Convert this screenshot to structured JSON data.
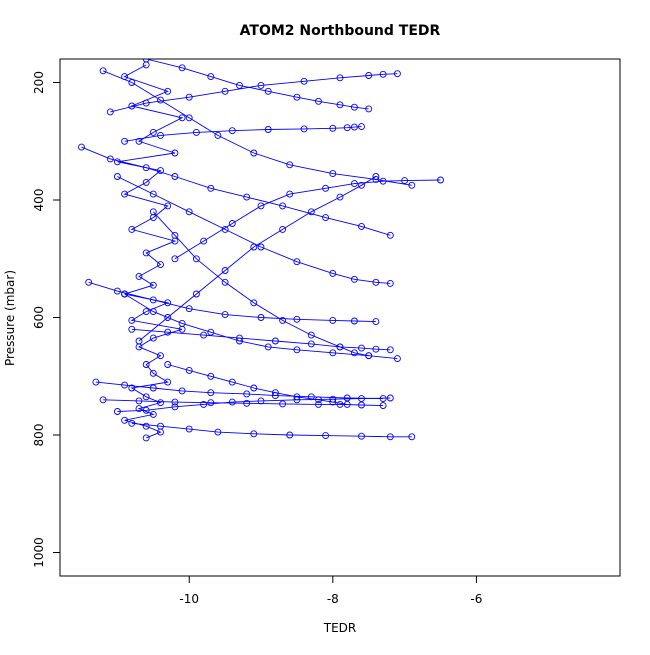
{
  "chart_data": {
    "type": "line",
    "title": "ATOM2 Northbound TEDR",
    "xlabel": "TEDR",
    "ylabel": "Pressure (mbar)",
    "xlim": [
      -11.8,
      -4.0
    ],
    "ylim": [
      1040,
      160
    ],
    "y_inverted": true,
    "x_ticks": [
      -10,
      -8,
      -6
    ],
    "y_ticks": [
      200,
      400,
      600,
      800,
      1000
    ],
    "grid": false,
    "legend": "none",
    "line_color": "#0000ff",
    "marker": "open-circle",
    "series": [
      {
        "x": [
          -10.6,
          -10.9,
          -10.3,
          -10.8,
          -10.1,
          -10.5,
          -10.7,
          -10.2,
          -11.0,
          -10.4,
          -10.6,
          -10.9,
          -10.3,
          -10.5,
          -10.8,
          -10.2,
          -10.6,
          -10.4,
          -10.7,
          -10.5,
          -10.9,
          -10.3,
          -10.6,
          -10.8,
          -10.1,
          -10.5,
          -10.7,
          -10.4,
          -10.6,
          -10.5,
          -10.3,
          -10.8,
          -10.6,
          -10.4,
          -10.7,
          -10.5,
          -10.9,
          -10.6,
          -10.4,
          -10.6
        ],
        "y": [
          170,
          190,
          215,
          240,
          260,
          285,
          300,
          320,
          335,
          350,
          370,
          390,
          410,
          430,
          450,
          470,
          490,
          510,
          530,
          545,
          560,
          575,
          590,
          605,
          620,
          635,
          650,
          665,
          680,
          695,
          710,
          720,
          735,
          745,
          755,
          765,
          775,
          785,
          795,
          805
        ]
      },
      {
        "x": [
          -11.5,
          -11.1,
          -10.6,
          -10.2,
          -9.7,
          -9.2,
          -8.7,
          -8.1,
          -7.6,
          -7.2
        ],
        "y": [
          310,
          330,
          345,
          360,
          380,
          395,
          410,
          430,
          445,
          460
        ]
      },
      {
        "x": [
          -11.2,
          -10.8,
          -10.4,
          -10.0,
          -9.6,
          -9.1,
          -8.6,
          -8.0,
          -7.4,
          -6.9
        ],
        "y": [
          180,
          200,
          230,
          260,
          290,
          320,
          340,
          355,
          365,
          375
        ]
      },
      {
        "x": [
          -10.9,
          -10.5,
          -10.1,
          -9.7,
          -9.3,
          -8.9,
          -8.5,
          -8.0,
          -7.5,
          -7.1
        ],
        "y": [
          560,
          590,
          610,
          625,
          640,
          650,
          655,
          660,
          665,
          670
        ]
      },
      {
        "x": [
          -11.3,
          -10.9,
          -10.5,
          -10.1,
          -9.7,
          -9.2,
          -8.8,
          -8.3,
          -7.8,
          -7.3
        ],
        "y": [
          710,
          715,
          720,
          725,
          728,
          730,
          733,
          735,
          737,
          738
        ]
      },
      {
        "x": [
          -11.0,
          -10.6,
          -10.2,
          -9.8,
          -9.4,
          -9.0,
          -8.5,
          -8.0,
          -7.6,
          -7.2
        ],
        "y": [
          760,
          758,
          752,
          748,
          744,
          742,
          740,
          739,
          738,
          737
        ]
      },
      {
        "x": [
          -10.8,
          -10.4,
          -10.0,
          -9.6,
          -9.1,
          -8.6,
          -8.1,
          -7.6,
          -7.2,
          -6.9
        ],
        "y": [
          780,
          785,
          790,
          795,
          798,
          800,
          801,
          802,
          803,
          803
        ]
      },
      {
        "x": [
          -10.2,
          -9.8,
          -9.4,
          -9.0,
          -8.6,
          -8.1,
          -7.7,
          -7.3,
          -7.0,
          -6.5
        ],
        "y": [
          500,
          470,
          440,
          410,
          390,
          380,
          372,
          368,
          367,
          366
        ]
      },
      {
        "x": [
          -11.1,
          -10.6,
          -10.0,
          -9.5,
          -9.0,
          -8.4,
          -7.9,
          -7.5,
          -7.3,
          -7.1
        ],
        "y": [
          250,
          235,
          225,
          215,
          205,
          198,
          192,
          188,
          186,
          185
        ]
      },
      {
        "x": [
          -10.7,
          -10.3,
          -9.9,
          -9.5,
          -9.1,
          -8.7,
          -8.3,
          -7.9,
          -7.6,
          -7.4
        ],
        "y": [
          640,
          600,
          560,
          520,
          480,
          450,
          420,
          395,
          375,
          360
        ]
      },
      {
        "x": [
          -11.4,
          -11.0,
          -10.5,
          -10.0,
          -9.5,
          -9.0,
          -8.5,
          -8.0,
          -7.7,
          -7.4
        ],
        "y": [
          540,
          555,
          570,
          585,
          595,
          600,
          603,
          605,
          606,
          607
        ]
      },
      {
        "x": [
          -10.5,
          -10.2,
          -9.9,
          -9.5,
          -9.1,
          -8.7,
          -8.3,
          -7.9,
          -7.7,
          -7.5
        ],
        "y": [
          420,
          460,
          500,
          540,
          575,
          605,
          630,
          650,
          660,
          665
        ]
      },
      {
        "x": [
          -10.9,
          -10.4,
          -9.9,
          -9.4,
          -8.9,
          -8.4,
          -8.0,
          -7.8,
          -7.7,
          -7.6
        ],
        "y": [
          300,
          290,
          285,
          282,
          280,
          279,
          278,
          277,
          276,
          275
        ]
      },
      {
        "x": [
          -11.2,
          -10.7,
          -10.2,
          -9.7,
          -9.2,
          -8.7,
          -8.2,
          -7.9,
          -7.6,
          -7.3
        ],
        "y": [
          740,
          742,
          744,
          745,
          746,
          747,
          748,
          748,
          749,
          750
        ]
      },
      {
        "x": [
          -10.6,
          -10.1,
          -9.7,
          -9.3,
          -8.9,
          -8.5,
          -8.2,
          -7.9,
          -7.7,
          -7.5
        ],
        "y": [
          160,
          175,
          190,
          205,
          215,
          225,
          232,
          238,
          242,
          245
        ]
      },
      {
        "x": [
          -10.3,
          -10.0,
          -9.7,
          -9.4,
          -9.1,
          -8.8,
          -8.5,
          -8.2,
          -8.0,
          -7.8
        ],
        "y": [
          680,
          690,
          700,
          710,
          720,
          728,
          735,
          740,
          744,
          748
        ]
      },
      {
        "x": [
          -10.8,
          -10.3,
          -9.8,
          -9.3,
          -8.8,
          -8.3,
          -7.9,
          -7.6,
          -7.4,
          -7.2
        ],
        "y": [
          620,
          625,
          630,
          635,
          640,
          645,
          650,
          652,
          654,
          655
        ]
      },
      {
        "x": [
          -11.0,
          -10.5,
          -10.0,
          -9.5,
          -9.0,
          -8.5,
          -8.0,
          -7.7,
          -7.4,
          -7.2
        ],
        "y": [
          360,
          390,
          420,
          450,
          480,
          505,
          525,
          535,
          540,
          542
        ]
      }
    ]
  }
}
